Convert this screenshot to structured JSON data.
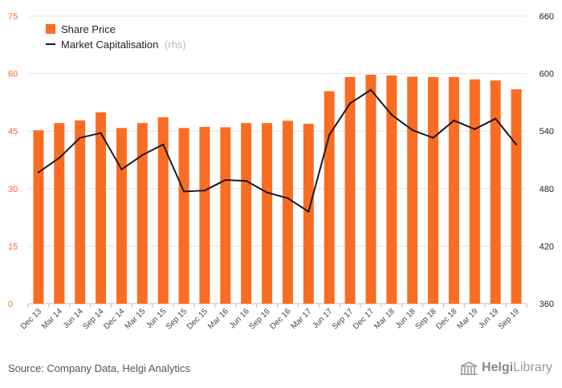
{
  "chart_data": {
    "type": "bar",
    "categories": [
      "Dec 13",
      "Mar 14",
      "Jun 14",
      "Sep 14",
      "Dec 14",
      "Mar 15",
      "Jun 15",
      "Sep 15",
      "Dec 15",
      "Mar 16",
      "Jun 16",
      "Sep 16",
      "Dec 16",
      "Mar 17",
      "Jun 17",
      "Sep 17",
      "Dec 17",
      "Mar 18",
      "Jun 18",
      "Sep 18",
      "Dec 18",
      "Mar 19",
      "Jun 19",
      "Sep 19"
    ],
    "series": [
      {
        "name": "Share Price",
        "type": "bar",
        "axis": "left",
        "color": "#f96d23",
        "values": [
          45.2,
          47.1,
          47.8,
          49.9,
          45.8,
          47.1,
          48.6,
          45.8,
          46.1,
          46.0,
          47.1,
          47.1,
          47.7,
          46.9,
          55.4,
          59.1,
          59.7,
          59.5,
          59.2,
          59.1,
          59.1,
          58.5,
          58.2,
          55.9
        ]
      },
      {
        "name": "Market Capitalisation",
        "name_suffix": "(rhs)",
        "type": "line",
        "axis": "right",
        "color": "#1a1a1a",
        "values": [
          497,
          512,
          533,
          538,
          500,
          515,
          526,
          477,
          478,
          489,
          488,
          476,
          470,
          456,
          536,
          569,
          583,
          557,
          541,
          533,
          551,
          542,
          553,
          526
        ]
      }
    ],
    "yleft": {
      "ticks": [
        "0",
        "15",
        "30",
        "45",
        "60",
        "75"
      ],
      "range": [
        0,
        75
      ]
    },
    "yright": {
      "ticks": [
        "360",
        "420",
        "480",
        "540",
        "600",
        "660"
      ],
      "range": [
        360,
        660
      ]
    },
    "grid": true,
    "legend_position": "top-left"
  },
  "footer": {
    "source": "Source: Company Data, Helgi Analytics",
    "brand_part1": "Helgi",
    "brand_part2": "Library"
  }
}
